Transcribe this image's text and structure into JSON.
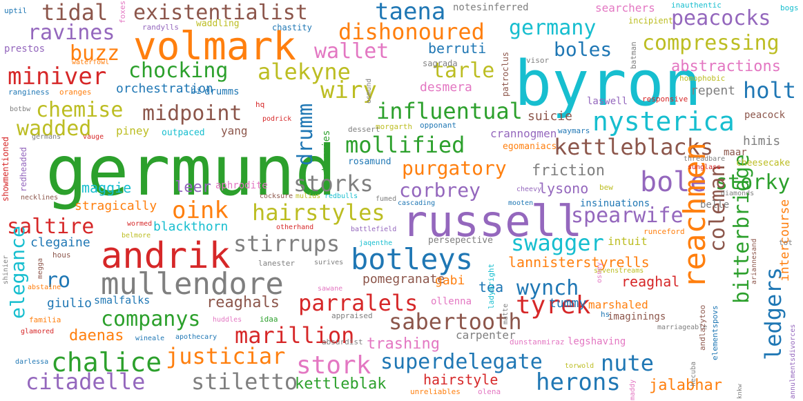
{
  "palette": {
    "blue": "#1f77b4",
    "orange": "#ff7f0e",
    "green": "#2ca02c",
    "red": "#d62728",
    "purple": "#9467bd",
    "brown": "#8c564b",
    "pink": "#e377c2",
    "gray": "#7f7f7f",
    "olive": "#bcbd22",
    "cyan": "#17becf"
  },
  "words": {
    "germund": "germund",
    "byron": "byron",
    "russell": "russell",
    "volmark": "volmark",
    "andrik": "andrik",
    "mullendore": "mullendore",
    "botleys": "botleys",
    "reachmen": "reachmen",
    "bole": "bole",
    "nysterica": "nysterica",
    "chalice": "chalice",
    "stork": "stork",
    "tyrek": "tyrek",
    "miniver": "miniver",
    "tidal": "tidal",
    "existentialist": "existentialist",
    "taena": "taena",
    "dishonoured": "dishonoured",
    "ravines": "ravines",
    "germany": "germany",
    "peacocks": "peacocks",
    "buzz": "buzz",
    "wallet": "wallet",
    "boles": "boles",
    "compressing": "compressing",
    "chocking": "chocking",
    "alekyne": "alekyne",
    "tarle": "tarle",
    "abstractions": "abstractions",
    "wiry": "wiry",
    "holt": "holt",
    "chemise": "chemise",
    "midpoint": "midpoint",
    "influentual": "influentual",
    "wadded": "wadded",
    "drumm": "drumm",
    "mollified": "mollified",
    "kettleblacks": "kettleblacks",
    "purgatory": "purgatory",
    "storks": "storks",
    "storky": "storky",
    "oink": "oink",
    "hairstyles": "hairstyles",
    "corbrey": "corbrey",
    "spearwife": "spearwife",
    "saltire": "saltire",
    "stirrups": "stirrups",
    "swagger": "swagger",
    "coleman": "coleman",
    "bitterbridge": "bitterbridge",
    "ledgers": "ledgers",
    "ro": "ro",
    "elegance": "elegance",
    "wynch": "wynch",
    "parralels": "parralels",
    "companys": "companys",
    "sabertooth": "sabertooth",
    "marillion": "marillion",
    "justiciar": "justiciar",
    "superdelegate": "superdelegate",
    "nute": "nute",
    "citadelle": "citadelle",
    "stiletto": "stiletto",
    "herons": "herons",
    "lannisterstyrells": "lannisterstyrells",
    "maggie": "maggie",
    "stragically": "stragically",
    "blackthorn": "blackthorn",
    "clegaine": "clegaine",
    "giulio": "giulio",
    "reaghals": "reaghals",
    "pomegranate": "pomegranate",
    "trashing": "trashing",
    "daenas": "daenas",
    "kettleblak": "kettleblak",
    "hairstyle": "hairstyle",
    "jalabhar": "jalabhar",
    "friction": "friction",
    "lysono": "lysono",
    "leer": "leer",
    "reaghal": "reaghal",
    "tummy": "tummy",
    "tea": "tea",
    "gabi": "gabi",
    "marshaled": "marshaled",
    "intercourse": "intercourse",
    "intuit": "intuit",
    "berruti": "berruti",
    "orchestration": "orchestration",
    "desmera": "desmera",
    "suicie": "suicie",
    "crannogmen": "crannogmen",
    "himis": "himis",
    "repent": "repent",
    "yang": "yang",
    "piney": "piney",
    "outpaced": "outpaced",
    "aphrodite": "aphrodite",
    "insinuations": "insinuations",
    "belle": "belle",
    "cheesecake": "cheesecake",
    "maar": "maar",
    "imaginings": "imaginings",
    "carpenter": "carpenter",
    "legshaving": "legshaving",
    "ollenna": "ollenna",
    "smalfalks": "smalfalks",
    "persepective": "persepective",
    "redheaded": "redheaded",
    "showmentioned": "showmentioned",
    "cherries": "cherries",
    "egomaniacs": "egomaniacs",
    "laswell": "laswell",
    "peacock": "peacock",
    "responsive": "responsive",
    "drumms": "drumms",
    "bi": "bi",
    "rosamund": "rosamund",
    "notesinferred": "notesinferred",
    "searchers": "searchers",
    "inauthentic": "inauthentic",
    "bogs": "bogs",
    "uptil": "uptil",
    "foxes": "foxes",
    "randylls": "randylls",
    "waddling": "waddling",
    "chastity": "chastity",
    "incipient": "incipient",
    "prestos": "prestos",
    "waterfowl": "waterfowl",
    "sagrada": "sagrada",
    "patroclus": "patroclus",
    "visor": "visor",
    "batman": "batman",
    "rangininess": "ranginess",
    "oranges": "oranges",
    "osmund": "osmund",
    "homophobic": "homophobic",
    "botbw": "botbw",
    "hq": "hq",
    "podrick": "podrick",
    "dessert": "dessert",
    "morgarth": "morgarth",
    "opponant": "opponant",
    "waymars": "waymars",
    "germans": "germans",
    "vauge": "vauge",
    "threadbare": "threadbare",
    "sunglass": "sunglass",
    "necklines": "necklines",
    "cocksure": "cocksure",
    "mulius": "mulius",
    "redbulls": "redbulls",
    "cheevy": "cheevy",
    "bew": "bew",
    "diamonds": "diamonds",
    "fumed": "fumed",
    "cascading": "cascading",
    "mooten": "mooten",
    "wormed": "wormed",
    "belmore": "belmore",
    "otherhand": "otherhand",
    "battlefield": "battlefield",
    "jaqenthe": "jaqenthe",
    "runceford": "runceford",
    "ariannesand": "ariannesand",
    "tot": "tot",
    "hous": "hous",
    "lanester": "lanester",
    "surives": "surives",
    "ladybright": "ladybright",
    "sevenstreams": "sevenstreams",
    "osney": "osney",
    "shinier": "shinier",
    "megga": "megga",
    "abstaine": "abstaine",
    "sawane": "sawane",
    "matte": "matte",
    "hs": "hs",
    "familia": "familia",
    "huddles": "huddles",
    "idaa": "idaa",
    "appraised": "appraised",
    "glamored": "glamored",
    "wineale": "wineale",
    "apothecary": "apothecary",
    "absurdist": "absurdist",
    "dunstanmiraz": "dunstanmiraz",
    "andlazytoo": "andlazytoo",
    "elementspovs": "elementspovs",
    "marriageable": "marriageable",
    "annulmentsdivorces": "annulmentsdivorces",
    "darlessa": "darlessa",
    "torwold": "torwold",
    "hecuba": "hecuba",
    "knkw": "knkw",
    "unreliables": "unreliables",
    "olena": "olena",
    "maddy": "maddy"
  }
}
